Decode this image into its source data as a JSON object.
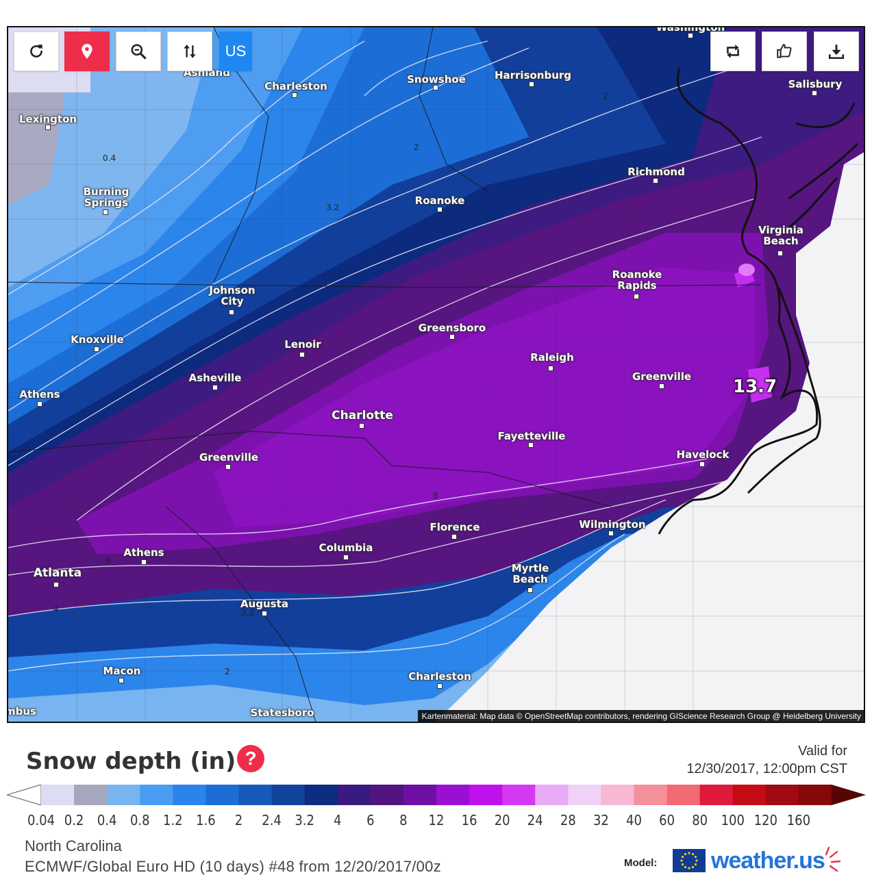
{
  "toolbar": {
    "region_label": "US",
    "left_icons": [
      "refresh-icon",
      "location-pin-icon",
      "zoom-out-icon",
      "sort-arrows-icon"
    ],
    "right_icons": [
      "retweet-share-icon",
      "thumbs-up-icon",
      "download-icon"
    ]
  },
  "colors": {
    "accent_red": "#ee2d4a",
    "accent_blue": "#1e88f2",
    "brand_blue": "#2574d8"
  },
  "map": {
    "max_value": "13.7",
    "attribution": "Kartenmaterial: Map data © OpenStreetMap contributors, rendering GIScience Research Group @ Heidelberg University",
    "cities": [
      {
        "name": "Lexington"
      },
      {
        "name": "Ashland"
      },
      {
        "name": "Charleston"
      },
      {
        "name": "Snowshoe"
      },
      {
        "name": "Harrisonburg"
      },
      {
        "name": "Washington"
      },
      {
        "name": "Salisbury"
      },
      {
        "name": "Burning\nSprings"
      },
      {
        "name": "Roanoke"
      },
      {
        "name": "Richmond"
      },
      {
        "name": "Virginia\nBeach"
      },
      {
        "name": "Johnson\nCity"
      },
      {
        "name": "Roanoke\nRapids"
      },
      {
        "name": "Knoxville"
      },
      {
        "name": "Greensboro"
      },
      {
        "name": "Lenoir"
      },
      {
        "name": "Raleigh"
      },
      {
        "name": "Asheville"
      },
      {
        "name": "Greenville"
      },
      {
        "name": "Athens"
      },
      {
        "name": "Charlotte"
      },
      {
        "name": "Fayetteville"
      },
      {
        "name": "Greenville"
      },
      {
        "name": "Havelock"
      },
      {
        "name": "Florence"
      },
      {
        "name": "Wilmington"
      },
      {
        "name": "Athens"
      },
      {
        "name": "Columbia"
      },
      {
        "name": "Atlanta"
      },
      {
        "name": "Myrtle\nBeach"
      },
      {
        "name": "Augusta"
      },
      {
        "name": "Macon"
      },
      {
        "name": "Charleston"
      },
      {
        "name": "Statesboro"
      },
      {
        "name": "mbus"
      }
    ],
    "contour_labels": [
      "0.4",
      "3.2",
      "2",
      "2",
      "8",
      "6",
      "4",
      "3.2",
      "2"
    ]
  },
  "panel": {
    "title": "Snow depth (in)",
    "help": "?",
    "valid_for_label": "Valid for",
    "valid_time": "12/30/2017, 12:00pm CST",
    "region": "North Carolina",
    "model_run": "ECMWF/Global Euro HD (10 days) #48 from 12/20/2017/00z",
    "model_label": "Model:",
    "brand": "weather.us"
  },
  "legend": {
    "ticks": [
      "0.04",
      "0.2",
      "0.4",
      "0.8",
      "1.2",
      "1.6",
      "2",
      "2.4",
      "3.2",
      "4",
      "6",
      "8",
      "12",
      "16",
      "20",
      "24",
      "28",
      "32",
      "40",
      "60",
      "80",
      "100",
      "120",
      "160"
    ],
    "colors": [
      "#ffffff",
      "#dcdcf2",
      "#a6a6be",
      "#78b4f0",
      "#4a9cf2",
      "#2a84ec",
      "#1c6ed6",
      "#155ab8",
      "#10449a",
      "#0c2c80",
      "#3a1a7e",
      "#52147e",
      "#6e10a4",
      "#9a10d2",
      "#c010ec",
      "#d438f2",
      "#e8aaf4",
      "#f0d2f6",
      "#f6b8d2",
      "#f4909a",
      "#f26a72",
      "#e01a3c",
      "#c40c14",
      "#a00a12",
      "#860808",
      "#560404"
    ]
  }
}
